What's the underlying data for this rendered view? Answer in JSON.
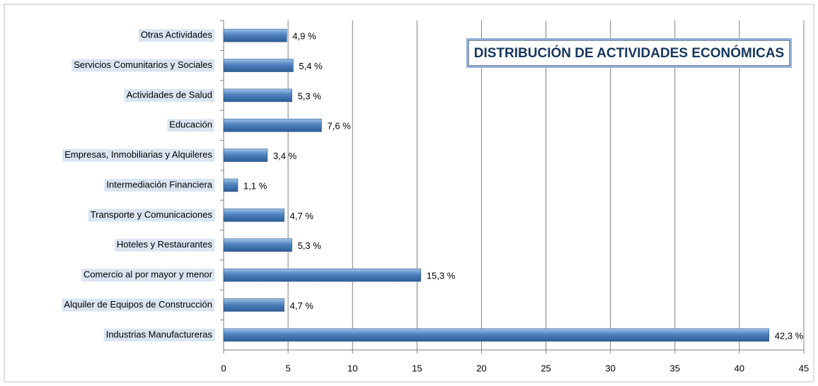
{
  "chart_data": {
    "type": "hbar",
    "title": "DISTRIBUCIÓN DE ACTIVIDADES ECONÓMICAS",
    "categories": [
      "Otras Actividades",
      "Servicios Comunitarios y Sociales",
      "Actividades de Salud",
      "Educación",
      "Empresas, Inmobiliarias y Alquileres",
      "Intermediación Financiera",
      "Transporte y Comunicaciones",
      "Hoteles y Restaurantes",
      "Comercio al por mayor y menor",
      "Alquiler de Equipos de Construcción",
      "Industrias Manufactureras"
    ],
    "values": [
      4.9,
      5.4,
      5.3,
      7.6,
      3.4,
      1.1,
      4.7,
      5.3,
      15.3,
      4.7,
      42.3
    ],
    "value_labels": [
      "4,9 %",
      "5,4 %",
      "5,3 %",
      "7,6 %",
      "3,4 %",
      "1,1 %",
      "4,7 %",
      "5,3 %",
      "15,3 %",
      "4,7 %",
      "42,3 %"
    ],
    "color": "#4f81bd",
    "xlim": [
      0,
      45
    ],
    "xticks": [
      0,
      5,
      10,
      15,
      20,
      25,
      30,
      35,
      40,
      45
    ],
    "grid": true
  }
}
